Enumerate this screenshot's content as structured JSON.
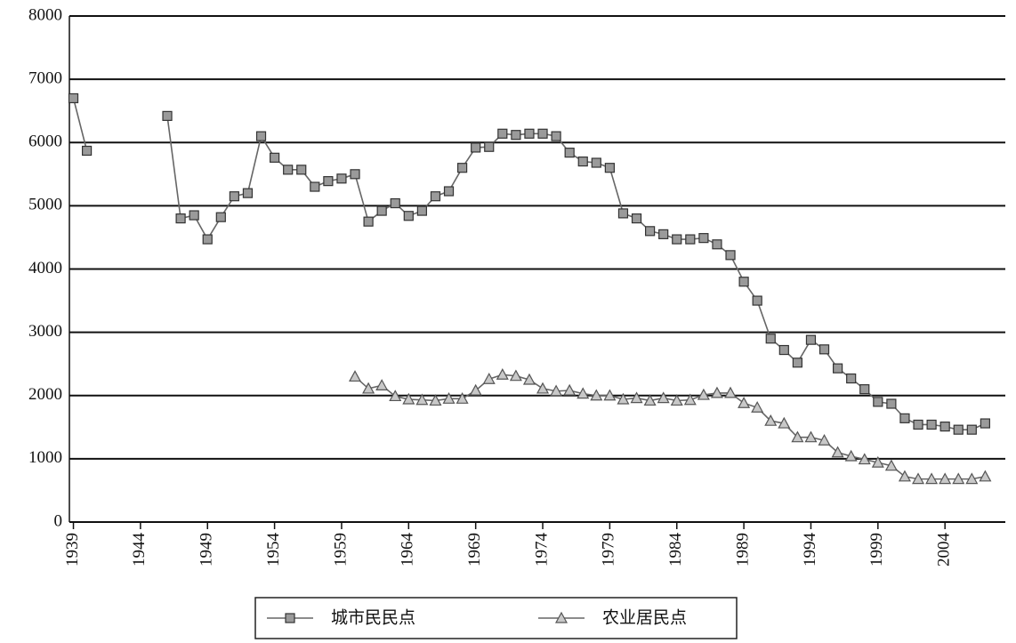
{
  "chart_data": {
    "type": "line",
    "x": [
      1939,
      1940,
      1941,
      1942,
      1943,
      1944,
      1945,
      1946,
      1947,
      1948,
      1949,
      1950,
      1951,
      1952,
      1953,
      1954,
      1955,
      1956,
      1957,
      1958,
      1959,
      1960,
      1961,
      1962,
      1963,
      1964,
      1965,
      1966,
      1967,
      1968,
      1969,
      1970,
      1971,
      1972,
      1973,
      1974,
      1975,
      1976,
      1977,
      1978,
      1979,
      1980,
      1981,
      1982,
      1983,
      1984,
      1985,
      1986,
      1987,
      1988,
      1989,
      1990,
      1991,
      1992,
      1993,
      1994,
      1995,
      1996,
      1997,
      1998,
      1999,
      2000,
      2001,
      2002,
      2003,
      2004,
      2005,
      2006,
      2007
    ],
    "series": [
      {
        "name": "城市民民点",
        "color": "#9a9a9a",
        "marker": "square",
        "values": [
          6700,
          5870,
          null,
          null,
          null,
          null,
          null,
          6420,
          4800,
          4850,
          4470,
          4820,
          5150,
          5200,
          6100,
          5760,
          5570,
          5570,
          5300,
          5390,
          5430,
          5500,
          4750,
          4920,
          5040,
          4840,
          4920,
          5150,
          5230,
          5600,
          5920,
          5930,
          6140,
          6120,
          6140,
          6140,
          6100,
          5840,
          5700,
          5680,
          5600,
          4880,
          4800,
          4600,
          4550,
          4470,
          4470,
          4490,
          4390,
          4220,
          3800,
          3500,
          2900,
          2720,
          2520,
          2880,
          2730,
          2430,
          2270,
          2100,
          1900,
          1870,
          1640,
          1540,
          1540,
          1510,
          1460,
          1460,
          1560
        ]
      },
      {
        "name": "农业居民点",
        "color": "#c8c8c8",
        "marker": "triangle",
        "values": [
          null,
          null,
          null,
          null,
          null,
          null,
          null,
          null,
          null,
          null,
          null,
          null,
          null,
          null,
          null,
          null,
          null,
          null,
          null,
          null,
          null,
          2300,
          2110,
          2160,
          1990,
          1940,
          1930,
          1920,
          1950,
          1950,
          2080,
          2260,
          2330,
          2310,
          2250,
          2110,
          2070,
          2080,
          2030,
          2000,
          2000,
          1940,
          1960,
          1920,
          1960,
          1920,
          1930,
          2010,
          2040,
          2040,
          1880,
          1810,
          1600,
          1560,
          1340,
          1340,
          1290,
          1100,
          1040,
          990,
          940,
          890,
          720,
          680,
          680,
          680,
          680,
          680,
          720
        ]
      }
    ],
    "xlim": [
      1938.7,
      2008.5
    ],
    "xticks": [
      1939,
      1944,
      1949,
      1954,
      1959,
      1964,
      1969,
      1974,
      1979,
      1984,
      1989,
      1994,
      1999,
      2004
    ],
    "ylim": [
      0,
      8000
    ],
    "yticks": [
      0,
      1000,
      2000,
      3000,
      4000,
      5000,
      6000,
      7000,
      8000
    ],
    "grid": true
  }
}
